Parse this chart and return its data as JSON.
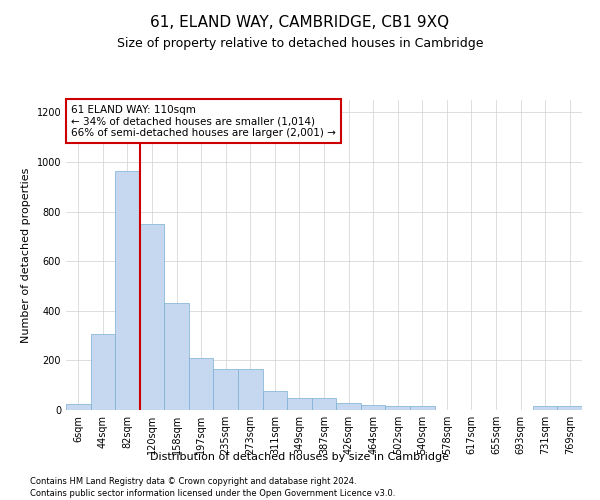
{
  "title": "61, ELAND WAY, CAMBRIDGE, CB1 9XQ",
  "subtitle": "Size of property relative to detached houses in Cambridge",
  "xlabel": "Distribution of detached houses by size in Cambridge",
  "ylabel": "Number of detached properties",
  "footnote1": "Contains HM Land Registry data © Crown copyright and database right 2024.",
  "footnote2": "Contains public sector information licensed under the Open Government Licence v3.0.",
  "annotation_line1": "61 ELAND WAY: 110sqm",
  "annotation_line2": "← 34% of detached houses are smaller (1,014)",
  "annotation_line3": "66% of semi-detached houses are larger (2,001) →",
  "bar_labels": [
    "6sqm",
    "44sqm",
    "82sqm",
    "120sqm",
    "158sqm",
    "197sqm",
    "235sqm",
    "273sqm",
    "311sqm",
    "349sqm",
    "387sqm",
    "426sqm",
    "464sqm",
    "502sqm",
    "540sqm",
    "578sqm",
    "617sqm",
    "655sqm",
    "693sqm",
    "731sqm",
    "769sqm"
  ],
  "bar_values": [
    25,
    305,
    965,
    750,
    430,
    210,
    165,
    165,
    75,
    50,
    50,
    30,
    20,
    15,
    15,
    0,
    0,
    0,
    0,
    15,
    15
  ],
  "bar_color": "#c5d8f0",
  "bar_edge_color": "#7bafd4",
  "vline_color": "#cc0000",
  "vline_index": 2,
  "ylim": [
    0,
    1250
  ],
  "yticks": [
    0,
    200,
    400,
    600,
    800,
    1000,
    1200
  ],
  "background_color": "#ffffff",
  "grid_color": "#d0d0d0",
  "title_fontsize": 11,
  "subtitle_fontsize": 9,
  "annotation_box_color": "#ffffff",
  "annotation_box_edge_color": "#cc0000",
  "annotation_fontsize": 7.5,
  "axis_label_fontsize": 8,
  "tick_fontsize": 7,
  "footnote_fontsize": 6
}
